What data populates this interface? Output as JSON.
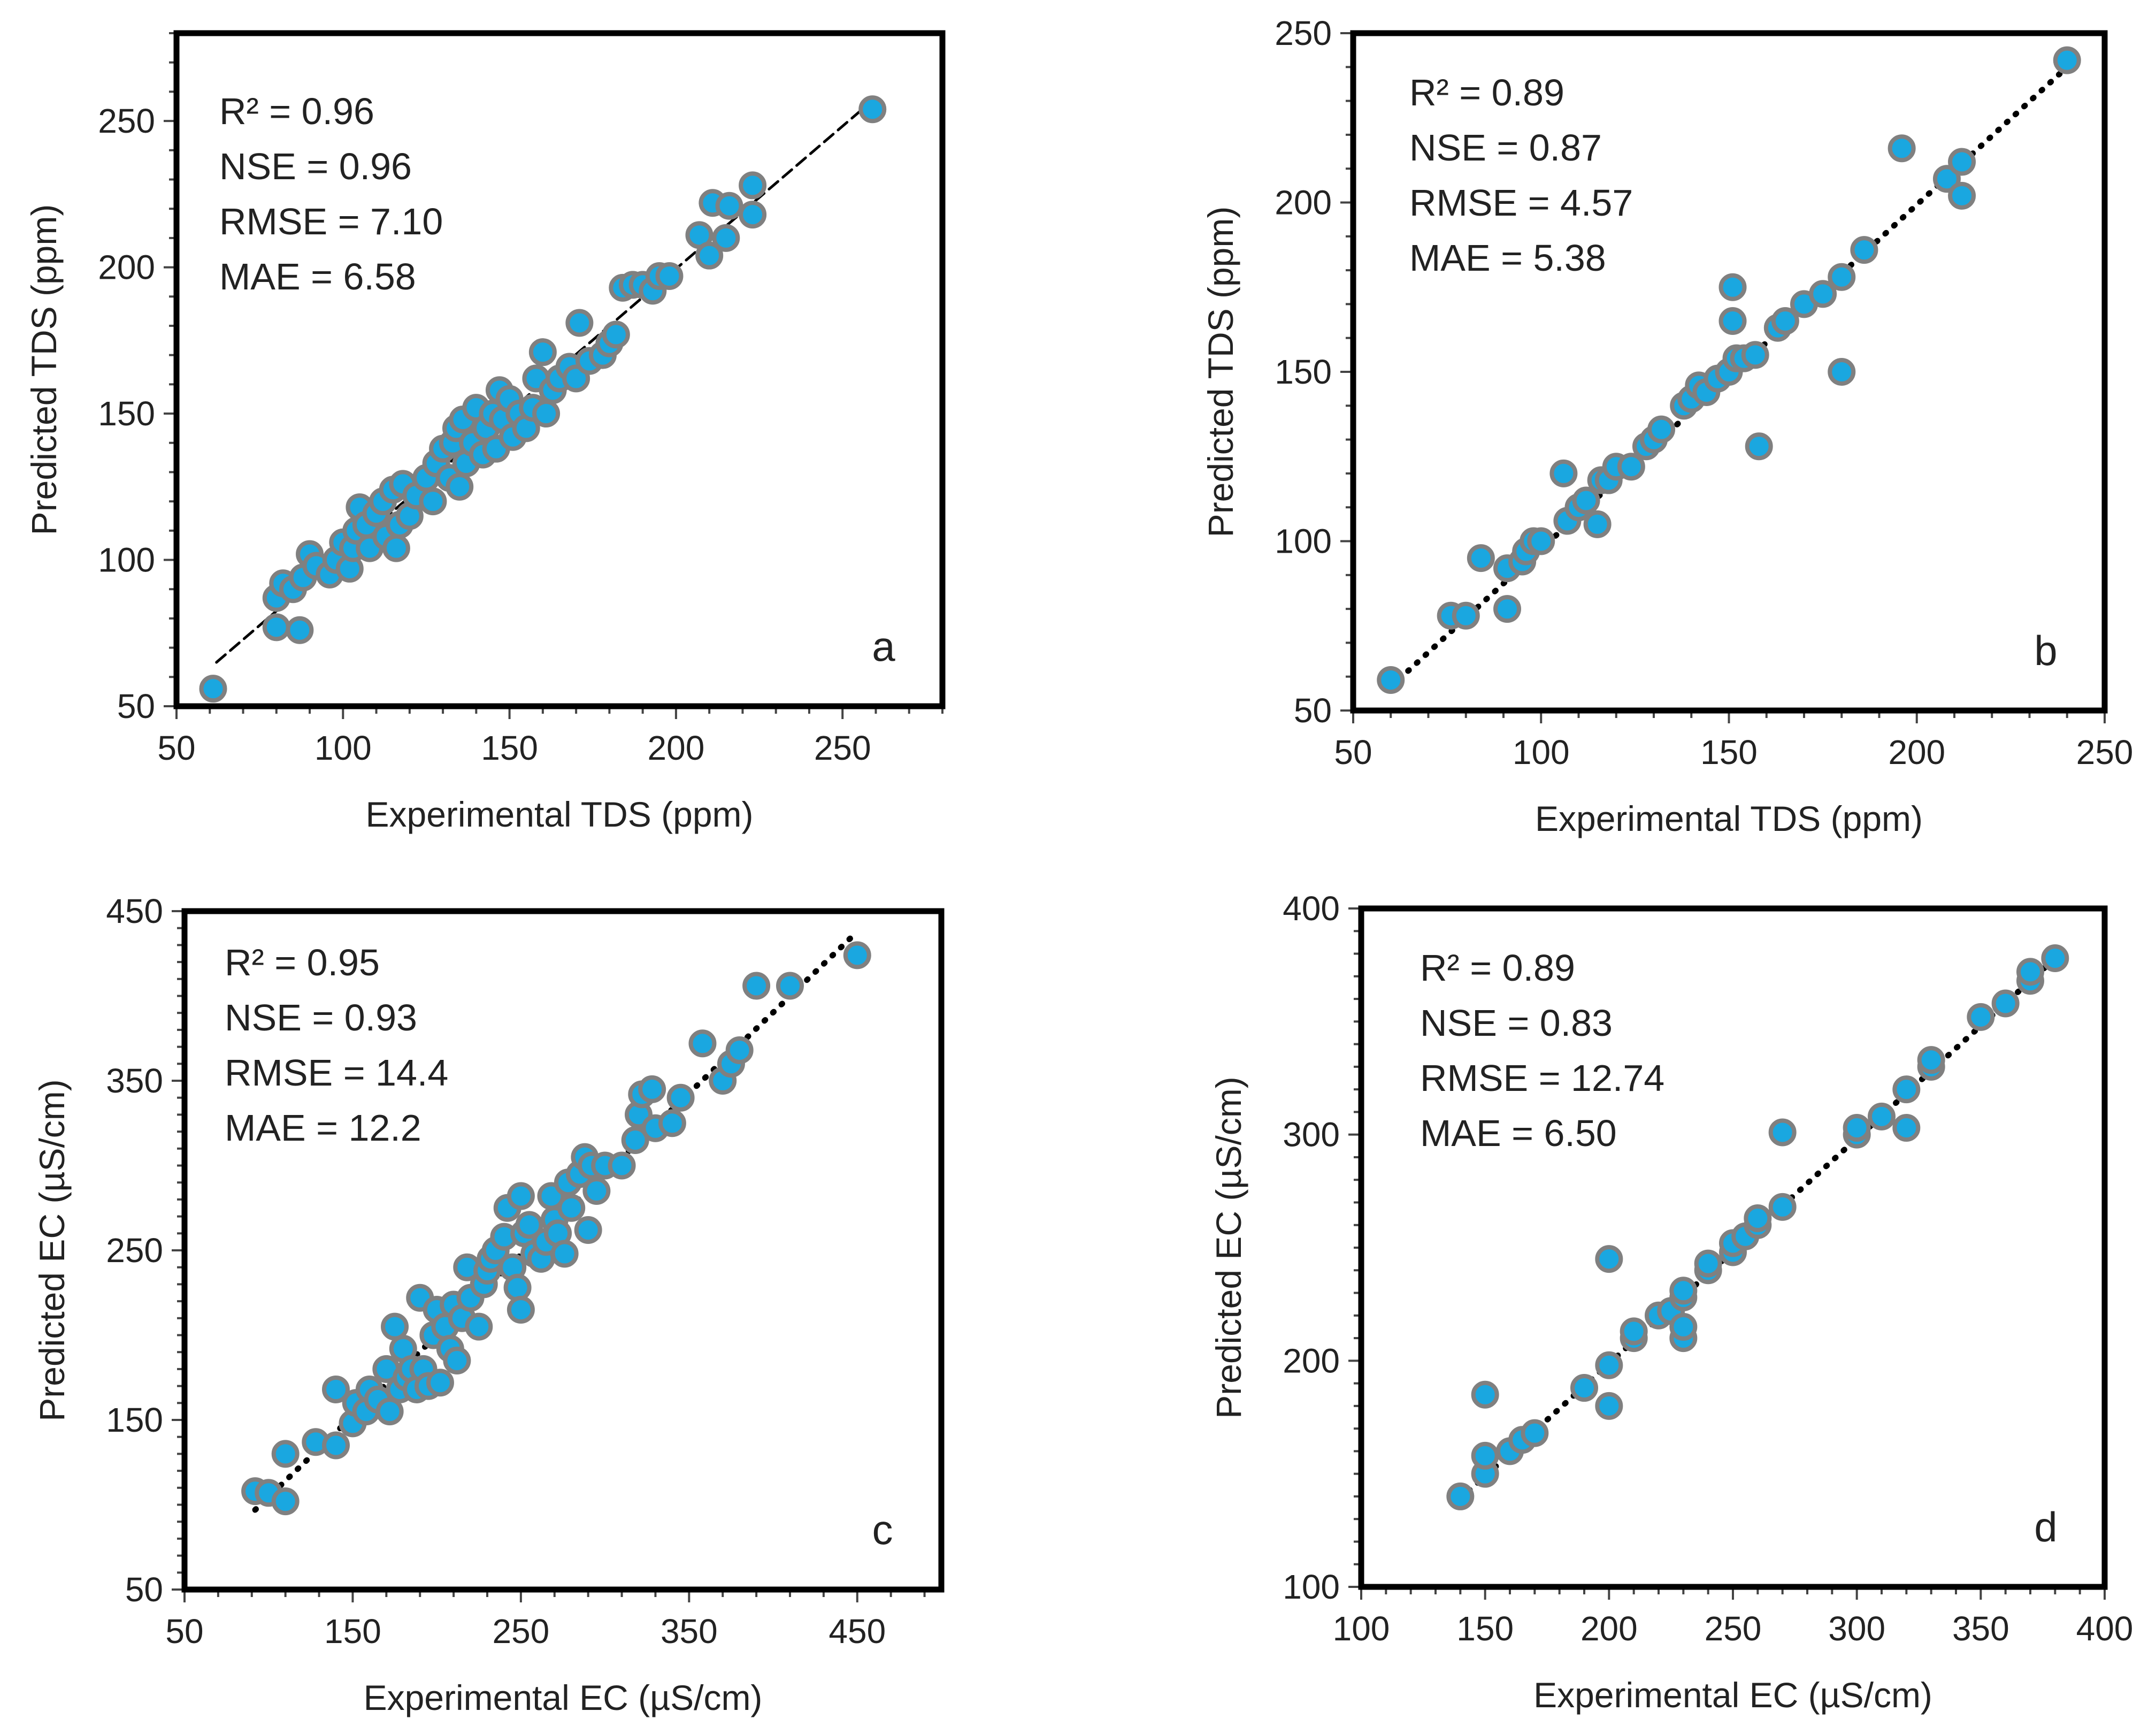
{
  "colors": {
    "point_fill": "#1aa7e0",
    "point_stroke": "#808080",
    "trendline": "#000000",
    "frame": "#000000"
  },
  "chart_data": [
    {
      "panel": "a",
      "type": "scatter",
      "xlabel": "Experimental TDS (ppm)",
      "ylabel": "Predicted TDS (ppm)",
      "xlim": [
        50,
        280
      ],
      "ylim": [
        50,
        280
      ],
      "x_ticks": [
        50,
        100,
        150,
        200,
        250
      ],
      "y_ticks": [
        50,
        100,
        150,
        200,
        250
      ],
      "stats": [
        "R² = 0.96",
        "NSE = 0.96",
        "RMSE = 7.10",
        "MAE = 6.58"
      ],
      "letter": "a",
      "trendline": {
        "style": "dashed",
        "x": [
          62,
          258
        ],
        "y": [
          65,
          256
        ]
      },
      "points": [
        [
          61,
          56
        ],
        [
          259,
          254
        ],
        [
          80,
          77
        ],
        [
          87,
          76
        ],
        [
          80,
          87
        ],
        [
          82,
          92
        ],
        [
          85,
          90
        ],
        [
          88,
          94
        ],
        [
          90,
          102
        ],
        [
          92,
          98
        ],
        [
          96,
          95
        ],
        [
          98,
          100
        ],
        [
          100,
          106
        ],
        [
          102,
          97
        ],
        [
          103,
          104
        ],
        [
          104,
          110
        ],
        [
          105,
          118
        ],
        [
          107,
          112
        ],
        [
          108,
          104
        ],
        [
          110,
          116
        ],
        [
          112,
          120
        ],
        [
          113,
          108
        ],
        [
          115,
          124
        ],
        [
          116,
          104
        ],
        [
          117,
          112
        ],
        [
          118,
          126
        ],
        [
          120,
          115
        ],
        [
          122,
          122
        ],
        [
          125,
          128
        ],
        [
          127,
          120
        ],
        [
          128,
          133
        ],
        [
          130,
          138
        ],
        [
          132,
          128
        ],
        [
          133,
          140
        ],
        [
          134,
          145
        ],
        [
          135,
          125
        ],
        [
          136,
          148
        ],
        [
          137,
          133
        ],
        [
          139,
          140
        ],
        [
          140,
          152
        ],
        [
          142,
          136
        ],
        [
          143,
          145
        ],
        [
          145,
          150
        ],
        [
          146,
          138
        ],
        [
          147,
          158
        ],
        [
          148,
          148
        ],
        [
          150,
          155
        ],
        [
          151,
          142
        ],
        [
          153,
          150
        ],
        [
          155,
          145
        ],
        [
          157,
          152
        ],
        [
          158,
          162
        ],
        [
          160,
          171
        ],
        [
          161,
          150
        ],
        [
          163,
          158
        ],
        [
          165,
          162
        ],
        [
          168,
          166
        ],
        [
          170,
          162
        ],
        [
          171,
          181
        ],
        [
          174,
          168
        ],
        [
          178,
          170
        ],
        [
          180,
          174
        ],
        [
          182,
          177
        ],
        [
          184,
          193
        ],
        [
          187,
          194
        ],
        [
          190,
          194
        ],
        [
          193,
          192
        ],
        [
          195,
          197
        ],
        [
          198,
          197
        ],
        [
          207,
          211
        ],
        [
          210,
          204
        ],
        [
          211,
          222
        ],
        [
          215,
          210
        ],
        [
          216,
          221
        ],
        [
          223,
          218
        ],
        [
          223,
          228
        ]
      ]
    },
    {
      "panel": "b",
      "type": "scatter",
      "xlabel": "Experimental TDS (ppm)",
      "ylabel": "Predicted TDS (ppm)",
      "xlim": [
        50,
        250
      ],
      "ylim": [
        50,
        250
      ],
      "x_ticks": [
        50,
        100,
        150,
        200,
        250
      ],
      "y_ticks": [
        50,
        100,
        150,
        200,
        250
      ],
      "stats": [
        "R² = 0.89",
        "NSE = 0.87",
        "RMSE = 4.57",
        "MAE = 5.38"
      ],
      "letter": "b",
      "trendline": {
        "style": "dotted",
        "x": [
          60,
          240
        ],
        "y": [
          57,
          240
        ]
      },
      "points": [
        [
          60,
          59
        ],
        [
          76,
          78
        ],
        [
          80,
          78
        ],
        [
          84,
          95
        ],
        [
          91,
          80
        ],
        [
          91,
          92
        ],
        [
          95,
          94
        ],
        [
          96,
          97
        ],
        [
          98,
          100
        ],
        [
          100,
          100
        ],
        [
          106,
          120
        ],
        [
          107,
          106
        ],
        [
          110,
          110
        ],
        [
          112,
          112
        ],
        [
          115,
          105
        ],
        [
          116,
          118
        ],
        [
          118,
          118
        ],
        [
          120,
          122
        ],
        [
          124,
          122
        ],
        [
          128,
          128
        ],
        [
          130,
          130
        ],
        [
          132,
          133
        ],
        [
          138,
          140
        ],
        [
          140,
          142
        ],
        [
          142,
          146
        ],
        [
          144,
          144
        ],
        [
          147,
          148
        ],
        [
          150,
          150
        ],
        [
          151,
          165
        ],
        [
          151,
          175
        ],
        [
          152,
          154
        ],
        [
          154,
          154
        ],
        [
          157,
          155
        ],
        [
          158,
          128
        ],
        [
          163,
          163
        ],
        [
          165,
          165
        ],
        [
          170,
          170
        ],
        [
          175,
          173
        ],
        [
          180,
          150
        ],
        [
          180,
          178
        ],
        [
          186,
          186
        ],
        [
          196,
          216
        ],
        [
          208,
          207
        ],
        [
          212,
          202
        ],
        [
          212,
          212
        ],
        [
          240,
          242
        ]
      ]
    },
    {
      "panel": "c",
      "type": "scatter",
      "xlabel": "Experimental EC (µS/cm)",
      "ylabel": "Predicted EC (µS/cm)",
      "xlim": [
        50,
        500
      ],
      "ylim": [
        50,
        450
      ],
      "x_ticks": [
        50,
        150,
        250,
        350,
        450
      ],
      "y_ticks": [
        50,
        150,
        250,
        350,
        450
      ],
      "stats": [
        "R² = 0.95",
        "NSE = 0.93",
        "RMSE = 14.4",
        "MAE = 12.2"
      ],
      "letter": "c",
      "trendline": {
        "style": "dotted",
        "x": [
          92,
          448
        ],
        "y": [
          97,
          436
        ]
      },
      "points": [
        [
          92,
          108
        ],
        [
          100,
          107
        ],
        [
          110,
          130
        ],
        [
          110,
          102
        ],
        [
          128,
          137
        ],
        [
          140,
          168
        ],
        [
          140,
          135
        ],
        [
          150,
          148
        ],
        [
          152,
          160
        ],
        [
          158,
          155
        ],
        [
          160,
          168
        ],
        [
          165,
          162
        ],
        [
          170,
          180
        ],
        [
          172,
          155
        ],
        [
          175,
          205
        ],
        [
          178,
          168
        ],
        [
          180,
          192
        ],
        [
          182,
          175
        ],
        [
          185,
          180
        ],
        [
          188,
          168
        ],
        [
          190,
          222
        ],
        [
          192,
          180
        ],
        [
          195,
          170
        ],
        [
          198,
          200
        ],
        [
          200,
          215
        ],
        [
          202,
          172
        ],
        [
          205,
          205
        ],
        [
          208,
          192
        ],
        [
          210,
          218
        ],
        [
          212,
          185
        ],
        [
          215,
          210
        ],
        [
          218,
          240
        ],
        [
          220,
          222
        ],
        [
          225,
          205
        ],
        [
          228,
          230
        ],
        [
          230,
          238
        ],
        [
          232,
          245
        ],
        [
          235,
          250
        ],
        [
          240,
          258
        ],
        [
          242,
          275
        ],
        [
          245,
          240
        ],
        [
          248,
          228
        ],
        [
          250,
          215
        ],
        [
          250,
          282
        ],
        [
          252,
          260
        ],
        [
          255,
          265
        ],
        [
          258,
          248
        ],
        [
          262,
          245
        ],
        [
          265,
          255
        ],
        [
          268,
          282
        ],
        [
          270,
          268
        ],
        [
          272,
          260
        ],
        [
          276,
          248
        ],
        [
          278,
          290
        ],
        [
          280,
          275
        ],
        [
          285,
          295
        ],
        [
          288,
          305
        ],
        [
          290,
          262
        ],
        [
          292,
          300
        ],
        [
          295,
          285
        ],
        [
          300,
          300
        ],
        [
          310,
          300
        ],
        [
          318,
          315
        ],
        [
          320,
          330
        ],
        [
          322,
          342
        ],
        [
          328,
          345
        ],
        [
          330,
          322
        ],
        [
          340,
          325
        ],
        [
          345,
          340
        ],
        [
          358,
          372
        ],
        [
          370,
          350
        ],
        [
          375,
          360
        ],
        [
          380,
          368
        ],
        [
          390,
          406
        ],
        [
          410,
          406
        ],
        [
          450,
          424
        ]
      ]
    },
    {
      "panel": "d",
      "type": "scatter",
      "xlabel": "Experimental EC (µS/cm)",
      "ylabel": "Predicted EC (µS/cm)",
      "xlim": [
        100,
        400
      ],
      "ylim": [
        100,
        400
      ],
      "x_ticks": [
        100,
        150,
        200,
        250,
        300,
        350,
        400
      ],
      "y_ticks": [
        100,
        200,
        300,
        400
      ],
      "stats": [
        "R² = 0.89",
        "NSE = 0.83",
        "RMSE = 12.74",
        "MAE = 6.50"
      ],
      "letter": "d",
      "trendline": {
        "style": "dotted",
        "x": [
          140,
          380
        ],
        "y": [
          139,
          378
        ]
      },
      "points": [
        [
          140,
          140
        ],
        [
          150,
          150
        ],
        [
          150,
          158
        ],
        [
          150,
          185
        ],
        [
          160,
          160
        ],
        [
          165,
          165
        ],
        [
          170,
          168
        ],
        [
          190,
          188
        ],
        [
          200,
          180
        ],
        [
          200,
          198
        ],
        [
          200,
          245
        ],
        [
          210,
          210
        ],
        [
          210,
          213
        ],
        [
          220,
          220
        ],
        [
          225,
          222
        ],
        [
          230,
          210
        ],
        [
          230,
          215
        ],
        [
          230,
          228
        ],
        [
          230,
          231
        ],
        [
          240,
          240
        ],
        [
          240,
          243
        ],
        [
          250,
          248
        ],
        [
          250,
          252
        ],
        [
          255,
          255
        ],
        [
          260,
          260
        ],
        [
          260,
          263
        ],
        [
          270,
          268
        ],
        [
          270,
          301
        ],
        [
          300,
          300
        ],
        [
          300,
          303
        ],
        [
          310,
          308
        ],
        [
          320,
          303
        ],
        [
          320,
          320
        ],
        [
          330,
          330
        ],
        [
          330,
          333
        ],
        [
          350,
          352
        ],
        [
          360,
          358
        ],
        [
          370,
          368
        ],
        [
          370,
          372
        ],
        [
          380,
          378
        ]
      ]
    }
  ]
}
